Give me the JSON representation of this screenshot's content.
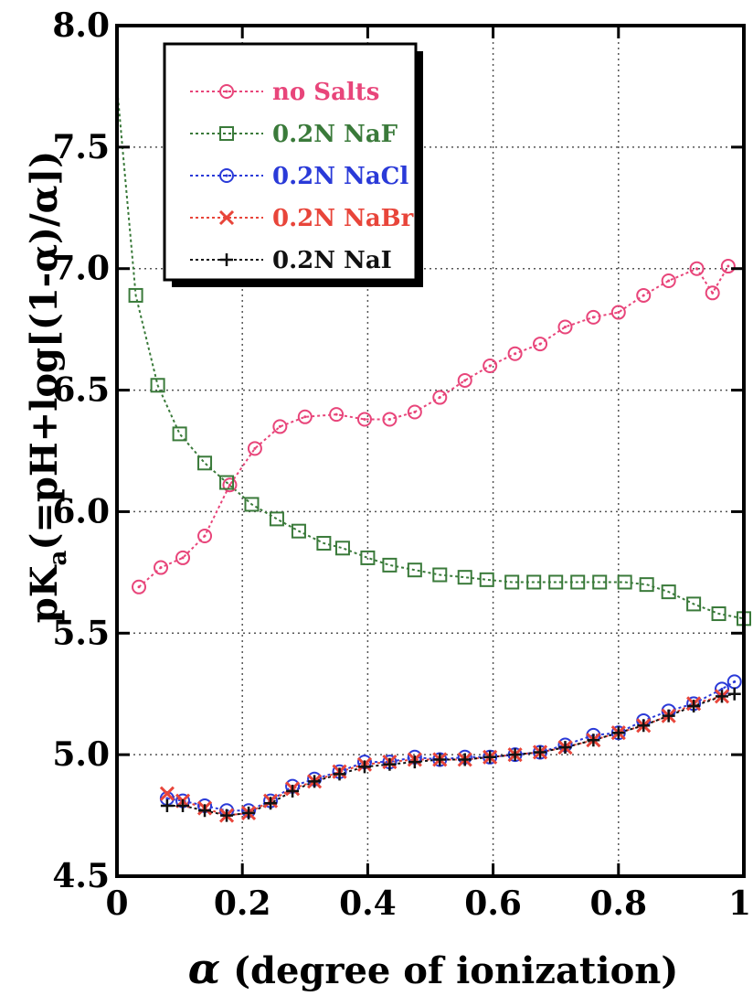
{
  "chart_data": {
    "type": "line",
    "title": "",
    "xlabel": {
      "symbol": "α",
      "text": " (degree of ionization)"
    },
    "ylabel": {
      "prefix": "pK",
      "subscript": "a",
      "suffix": "(=pH+log[(1-α)/α])"
    },
    "xlim": [
      0,
      1
    ],
    "ylim": [
      4.5,
      8.0
    ],
    "x_ticks": [
      0,
      0.2,
      0.4,
      0.6,
      0.8,
      1
    ],
    "x_tick_labels": [
      "0",
      "0.2",
      "0.4",
      "0.6",
      "0.8",
      "1"
    ],
    "y_ticks": [
      4.5,
      5.0,
      5.5,
      6.0,
      6.5,
      7.0,
      7.5,
      8.0
    ],
    "y_tick_labels": [
      "4.5",
      "5.0",
      "5.5",
      "6.0",
      "6.5",
      "7.0",
      "7.5",
      "8.0"
    ],
    "grid": true,
    "legend_position": "top-left",
    "series": [
      {
        "name": "no Salts",
        "color": "#e8457a",
        "marker": "circle",
        "x": [
          0.035,
          0.07,
          0.105,
          0.14,
          0.18,
          0.22,
          0.26,
          0.3,
          0.35,
          0.395,
          0.435,
          0.475,
          0.515,
          0.555,
          0.595,
          0.635,
          0.675,
          0.715,
          0.76,
          0.8,
          0.84,
          0.88,
          0.925,
          0.95,
          0.975
        ],
        "y": [
          5.69,
          5.77,
          5.81,
          5.9,
          6.11,
          6.26,
          6.35,
          6.39,
          6.4,
          6.38,
          6.38,
          6.41,
          6.47,
          6.54,
          6.6,
          6.65,
          6.69,
          6.76,
          6.8,
          6.82,
          6.89,
          6.95,
          7.0,
          6.9,
          7.01
        ]
      },
      {
        "name": "0.2N NaF",
        "color": "#3a7a3a",
        "marker": "square",
        "x": [
          0.0,
          0.03,
          0.065,
          0.1,
          0.14,
          0.175,
          0.215,
          0.255,
          0.29,
          0.33,
          0.36,
          0.4,
          0.435,
          0.475,
          0.515,
          0.555,
          0.59,
          0.63,
          0.665,
          0.7,
          0.735,
          0.77,
          0.81,
          0.845,
          0.88,
          0.92,
          0.96,
          1.0
        ],
        "y": [
          7.75,
          6.89,
          6.52,
          6.32,
          6.2,
          6.12,
          6.03,
          5.97,
          5.92,
          5.87,
          5.85,
          5.81,
          5.78,
          5.76,
          5.74,
          5.73,
          5.72,
          5.71,
          5.71,
          5.71,
          5.71,
          5.71,
          5.71,
          5.7,
          5.67,
          5.62,
          5.58,
          5.56
        ]
      },
      {
        "name": "0.2N NaCl",
        "color": "#2a3ad8",
        "marker": "circle",
        "x": [
          0.08,
          0.105,
          0.14,
          0.175,
          0.21,
          0.245,
          0.28,
          0.315,
          0.355,
          0.395,
          0.435,
          0.475,
          0.515,
          0.555,
          0.595,
          0.635,
          0.675,
          0.715,
          0.76,
          0.8,
          0.84,
          0.88,
          0.92,
          0.965,
          0.985
        ],
        "y": [
          4.82,
          4.81,
          4.79,
          4.77,
          4.77,
          4.81,
          4.87,
          4.9,
          4.93,
          4.97,
          4.97,
          4.99,
          4.98,
          4.99,
          4.99,
          5.0,
          5.01,
          5.04,
          5.08,
          5.09,
          5.14,
          5.18,
          5.21,
          5.27,
          5.3
        ]
      },
      {
        "name": "0.2N NaBr",
        "color": "#e8453a",
        "marker": "x",
        "x": [
          0.08,
          0.105,
          0.14,
          0.175,
          0.21,
          0.245,
          0.28,
          0.315,
          0.355,
          0.395,
          0.435,
          0.475,
          0.515,
          0.555,
          0.595,
          0.635,
          0.675,
          0.715,
          0.76,
          0.8,
          0.84,
          0.88,
          0.92,
          0.965
        ],
        "y": [
          4.84,
          4.81,
          4.78,
          4.75,
          4.76,
          4.81,
          4.86,
          4.89,
          4.93,
          4.96,
          4.97,
          4.98,
          4.98,
          4.98,
          4.99,
          5.0,
          5.01,
          5.03,
          5.06,
          5.09,
          5.12,
          5.16,
          5.21,
          5.24
        ]
      },
      {
        "name": "0.2N NaI",
        "color": "#111111",
        "marker": "plus",
        "x": [
          0.08,
          0.105,
          0.14,
          0.175,
          0.21,
          0.245,
          0.28,
          0.315,
          0.355,
          0.395,
          0.435,
          0.475,
          0.515,
          0.555,
          0.595,
          0.635,
          0.675,
          0.715,
          0.76,
          0.8,
          0.84,
          0.88,
          0.92,
          0.965,
          0.985
        ],
        "y": [
          4.79,
          4.79,
          4.77,
          4.75,
          4.76,
          4.8,
          4.85,
          4.89,
          4.92,
          4.95,
          4.96,
          4.97,
          4.98,
          4.98,
          4.99,
          5.0,
          5.01,
          5.03,
          5.06,
          5.09,
          5.12,
          5.16,
          5.2,
          5.24,
          5.25
        ]
      }
    ]
  }
}
